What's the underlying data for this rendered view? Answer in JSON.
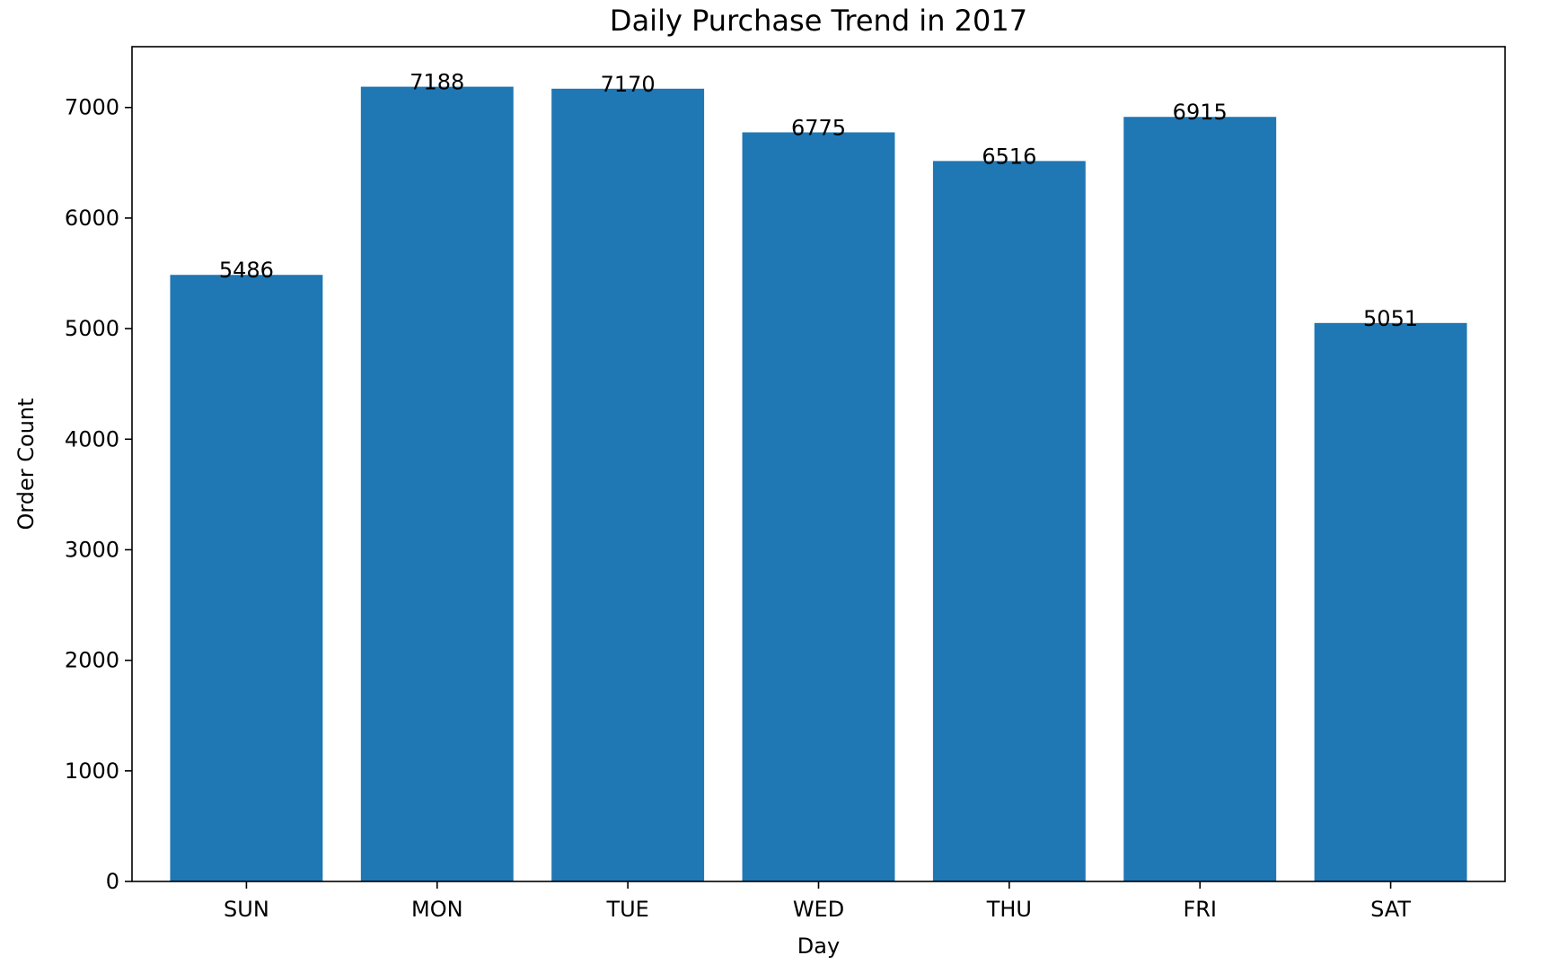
{
  "chart_data": {
    "type": "bar",
    "title": "Daily Purchase Trend in 2017",
    "xlabel": "Day",
    "ylabel": "Order Count",
    "categories": [
      "SUN",
      "MON",
      "TUE",
      "WED",
      "THU",
      "FRI",
      "SAT"
    ],
    "values": [
      5486,
      7188,
      7170,
      6775,
      6516,
      6915,
      5051
    ],
    "data_labels": [
      "5486",
      "7188",
      "7170",
      "6775",
      "6516",
      "6915",
      "5051"
    ],
    "ylim": [
      0,
      7550
    ],
    "yticks": [
      0,
      1000,
      2000,
      3000,
      4000,
      5000,
      6000,
      7000
    ],
    "ytick_labels": [
      "0",
      "1000",
      "2000",
      "3000",
      "4000",
      "5000",
      "6000",
      "7000"
    ],
    "grid": false,
    "legend": "none",
    "bar_color": "#1f77b4"
  }
}
